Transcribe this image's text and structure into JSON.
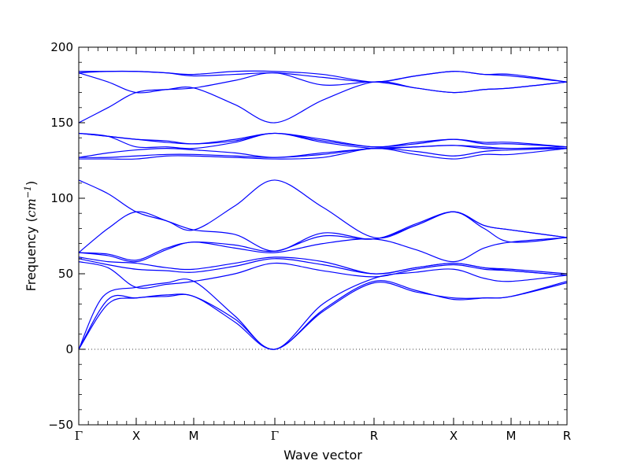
{
  "chart_data": {
    "type": "line",
    "title": "",
    "xlabel": "Wave vector",
    "ylabel": "Frequency",
    "ylabel_unit": "cm",
    "ylabel_unit_exponent": "−1",
    "ylim": [
      -50,
      200
    ],
    "yticks": [
      -50,
      0,
      50,
      100,
      150,
      200
    ],
    "ytick_labels": [
      "−50",
      "0",
      "50",
      "100",
      "150",
      "200"
    ],
    "xlim": [
      0,
      1
    ],
    "xticks": [
      {
        "pos": 0.0,
        "label": "Γ"
      },
      {
        "pos": 0.1177,
        "label": "X"
      },
      {
        "pos": 0.2355,
        "label": "M"
      },
      {
        "pos": 0.4016,
        "label": "Γ"
      },
      {
        "pos": 0.6048,
        "label": "R"
      },
      {
        "pos": 0.7677,
        "label": "X"
      },
      {
        "pos": 0.8855,
        "label": "M"
      },
      {
        "pos": 1.0,
        "label": "R"
      }
    ],
    "zero_line": true,
    "series_color": "#0000ff",
    "series": [
      {
        "x": [
          0.0,
          0.06,
          0.1177,
          0.18,
          0.2355,
          0.32,
          0.4016,
          0.5,
          0.6048,
          0.69,
          0.7677,
          0.83,
          0.8855,
          1.0
        ],
        "y": [
          0,
          30,
          34,
          35,
          35,
          18,
          0,
          25,
          44,
          38,
          34,
          34,
          35,
          44
        ]
      },
      {
        "x": [
          0.0,
          0.06,
          0.1177,
          0.18,
          0.2355,
          0.32,
          0.4016,
          0.5,
          0.6048,
          0.69,
          0.7677,
          0.83,
          0.8855,
          1.0
        ],
        "y": [
          0,
          33,
          34,
          36,
          35,
          20,
          0,
          26,
          45,
          39,
          33,
          34,
          35,
          45
        ]
      },
      {
        "x": [
          0.0,
          0.05,
          0.1177,
          0.18,
          0.2355,
          0.32,
          0.4016,
          0.5,
          0.6048,
          0.69,
          0.7677,
          0.83,
          0.8855,
          1.0
        ],
        "y": [
          0,
          35,
          41,
          44,
          45,
          22,
          0,
          30,
          47,
          51,
          53,
          47,
          45,
          49
        ]
      },
      {
        "x": [
          0.0,
          0.06,
          0.1177,
          0.18,
          0.2355,
          0.32,
          0.4016,
          0.5,
          0.6048,
          0.69,
          0.7677,
          0.83,
          0.8855,
          1.0
        ],
        "y": [
          58,
          54,
          41,
          43,
          45,
          50,
          57,
          52,
          48,
          53,
          56,
          53,
          52,
          49
        ]
      },
      {
        "x": [
          0.0,
          0.06,
          0.1177,
          0.18,
          0.2355,
          0.32,
          0.4016,
          0.5,
          0.6048,
          0.69,
          0.7677,
          0.83,
          0.8855,
          1.0
        ],
        "y": [
          60,
          56,
          53,
          52,
          51,
          55,
          60,
          56,
          50,
          54,
          57,
          54,
          52,
          49
        ]
      },
      {
        "x": [
          0.0,
          0.06,
          0.1177,
          0.18,
          0.2355,
          0.32,
          0.4016,
          0.5,
          0.6048,
          0.69,
          0.7677,
          0.83,
          0.8855,
          1.0
        ],
        "y": [
          61,
          58,
          57,
          54,
          53,
          57,
          61,
          58,
          50,
          54,
          57,
          54,
          53,
          50
        ]
      },
      {
        "x": [
          0.0,
          0.06,
          0.1177,
          0.18,
          0.2355,
          0.32,
          0.4016,
          0.5,
          0.6048,
          0.69,
          0.7677,
          0.83,
          0.8855,
          1.0
        ],
        "y": [
          64,
          62,
          58,
          66,
          71,
          67,
          64,
          70,
          73,
          66,
          58,
          67,
          71,
          74
        ]
      },
      {
        "x": [
          0.0,
          0.06,
          0.1177,
          0.18,
          0.2355,
          0.32,
          0.4016,
          0.5,
          0.6048,
          0.69,
          0.7677,
          0.83,
          0.8855,
          1.0
        ],
        "y": [
          64,
          63,
          59,
          67,
          71,
          69,
          65,
          75,
          73,
          82,
          91,
          80,
          71,
          74
        ]
      },
      {
        "x": [
          0.0,
          0.06,
          0.1177,
          0.18,
          0.2355,
          0.32,
          0.4016,
          0.5,
          0.6048,
          0.69,
          0.7677,
          0.83,
          0.8855,
          1.0
        ],
        "y": [
          64,
          80,
          91,
          85,
          79,
          76,
          65,
          77,
          73,
          83,
          91,
          82,
          79,
          74
        ]
      },
      {
        "x": [
          0.0,
          0.06,
          0.1177,
          0.18,
          0.2355,
          0.32,
          0.4016,
          0.5,
          0.6048,
          0.69,
          0.7677,
          0.83,
          0.8855,
          1.0
        ],
        "y": [
          112,
          103,
          91,
          85,
          79,
          95,
          112,
          94,
          74,
          82,
          91,
          82,
          79,
          74
        ]
      },
      {
        "x": [
          0.0,
          0.06,
          0.1177,
          0.18,
          0.2355,
          0.32,
          0.4016,
          0.5,
          0.6048,
          0.69,
          0.7677,
          0.83,
          0.8855,
          1.0
        ],
        "y": [
          126,
          126,
          126,
          128,
          128,
          127,
          126,
          127,
          133,
          129,
          126,
          129,
          129,
          133
        ]
      },
      {
        "x": [
          0.0,
          0.06,
          0.1177,
          0.18,
          0.2355,
          0.32,
          0.4016,
          0.5,
          0.6048,
          0.69,
          0.7677,
          0.83,
          0.8855,
          1.0
        ],
        "y": [
          127,
          127,
          128,
          129,
          129,
          128,
          127,
          129,
          133,
          131,
          128,
          131,
          132,
          133
        ]
      },
      {
        "x": [
          0.0,
          0.06,
          0.1177,
          0.18,
          0.2355,
          0.32,
          0.4016,
          0.5,
          0.6048,
          0.69,
          0.7677,
          0.83,
          0.8855,
          1.0
        ],
        "y": [
          127,
          130,
          132,
          133,
          132,
          130,
          127,
          130,
          133,
          134,
          135,
          133,
          133,
          133
        ]
      },
      {
        "x": [
          0.0,
          0.06,
          0.1177,
          0.18,
          0.2355,
          0.32,
          0.4016,
          0.5,
          0.6048,
          0.69,
          0.7677,
          0.83,
          0.8855,
          1.0
        ],
        "y": [
          143,
          141,
          134,
          134,
          133,
          137,
          143,
          137,
          133,
          134,
          135,
          134,
          133,
          134
        ]
      },
      {
        "x": [
          0.0,
          0.06,
          0.1177,
          0.18,
          0.2355,
          0.32,
          0.4016,
          0.5,
          0.6048,
          0.69,
          0.7677,
          0.83,
          0.8855,
          1.0
        ],
        "y": [
          143,
          141,
          139,
          138,
          136,
          139,
          143,
          139,
          134,
          137,
          139,
          137,
          137,
          134
        ]
      },
      {
        "x": [
          0.0,
          0.06,
          0.1177,
          0.18,
          0.2355,
          0.32,
          0.4016,
          0.5,
          0.6048,
          0.69,
          0.7677,
          0.83,
          0.8855,
          1.0
        ],
        "y": [
          143,
          141,
          139,
          137,
          136,
          138,
          143,
          138,
          134,
          136,
          139,
          136,
          136,
          134
        ]
      },
      {
        "x": [
          0.0,
          0.06,
          0.1177,
          0.18,
          0.2355,
          0.32,
          0.4016,
          0.5,
          0.6048,
          0.69,
          0.7677,
          0.83,
          0.8855,
          1.0
        ],
        "y": [
          150,
          160,
          170,
          172,
          173,
          162,
          150,
          165,
          177,
          173,
          170,
          172,
          173,
          177
        ]
      },
      {
        "x": [
          0.0,
          0.06,
          0.1177,
          0.18,
          0.2355,
          0.32,
          0.4016,
          0.5,
          0.6048,
          0.69,
          0.7677,
          0.83,
          0.8855,
          1.0
        ],
        "y": [
          183,
          177,
          170,
          172,
          173,
          178,
          183,
          175,
          177,
          173,
          170,
          172,
          173,
          177
        ]
      },
      {
        "x": [
          0.0,
          0.06,
          0.1177,
          0.18,
          0.2355,
          0.32,
          0.4016,
          0.5,
          0.6048,
          0.69,
          0.7677,
          0.83,
          0.8855,
          1.0
        ],
        "y": [
          183,
          184,
          184,
          183,
          181,
          182,
          183,
          180,
          177,
          181,
          184,
          182,
          181,
          177
        ]
      },
      {
        "x": [
          0.0,
          0.06,
          0.1177,
          0.18,
          0.2355,
          0.32,
          0.4016,
          0.5,
          0.6048,
          0.69,
          0.7677,
          0.83,
          0.8855,
          1.0
        ],
        "y": [
          184,
          184,
          184,
          183,
          182,
          184,
          184,
          182,
          177,
          181,
          184,
          182,
          182,
          177
        ]
      }
    ]
  }
}
